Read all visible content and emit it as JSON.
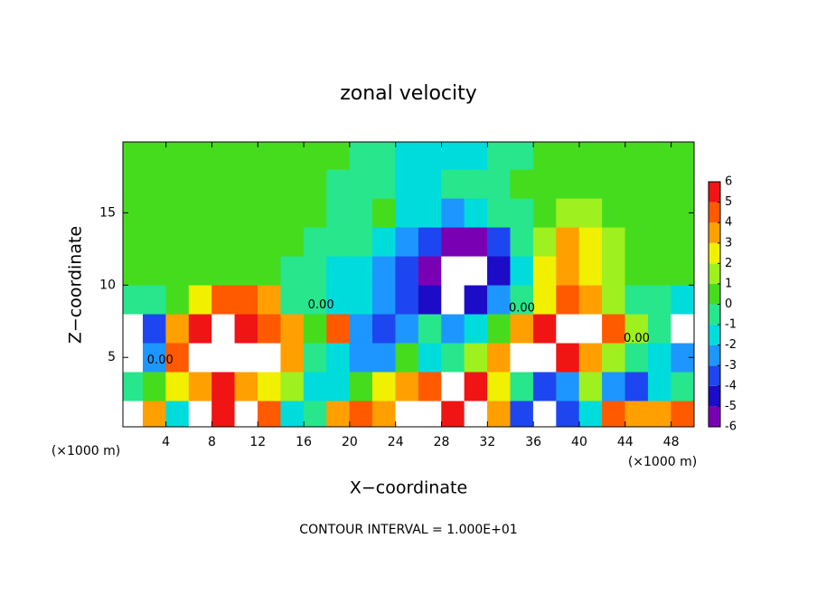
{
  "chart_data": {
    "type": "heatmap",
    "title": "zonal velocity",
    "xlabel": "X−coordinate",
    "ylabel": "Z−coordinate",
    "x_unit_label": "(×1000 m)",
    "x_unit_label_right": "(×1000 m)",
    "footer": "CONTOUR INTERVAL = 1.000E+01",
    "xlim": [
      0.25,
      50
    ],
    "ylim": [
      0.2,
      19.9
    ],
    "xticks": [
      4,
      8,
      12,
      16,
      20,
      24,
      28,
      32,
      36,
      40,
      44,
      48
    ],
    "yticks": [
      5,
      10,
      15
    ],
    "x": [
      1,
      3,
      5,
      7,
      9,
      11,
      13,
      15,
      17,
      19,
      21,
      23,
      25,
      27,
      29,
      31,
      33,
      35,
      37,
      39,
      41,
      43,
      45,
      47,
      49
    ],
    "y": [
      1,
      3,
      5,
      7,
      9,
      11,
      13,
      15,
      17,
      19
    ],
    "z": [
      [
        8,
        3,
        -2,
        8,
        5,
        8,
        4,
        -2,
        -1,
        3,
        4,
        3,
        8,
        8,
        5,
        6,
        3,
        -4,
        8,
        -4,
        -2,
        4,
        3,
        3,
        4
      ],
      [
        -1,
        0.5,
        2,
        3,
        5,
        3,
        2,
        1,
        -2,
        -2,
        0.5,
        2,
        3,
        4,
        8,
        5,
        2,
        -1,
        -4,
        -3,
        1,
        -3,
        -4,
        -2,
        -1
      ],
      [
        8,
        -3,
        4,
        6,
        8,
        8,
        6,
        3,
        -0.5,
        -2,
        -3,
        -3,
        0.5,
        -2,
        -1,
        1,
        3,
        6,
        8,
        5,
        3,
        1,
        -1,
        -2,
        -3
      ],
      [
        8,
        -4,
        3,
        5,
        8,
        5,
        4,
        3,
        0.5,
        4,
        -3,
        -4,
        -3,
        -1,
        -3,
        -2,
        0,
        3,
        5,
        6,
        8,
        4,
        1,
        -1,
        8
      ],
      [
        -1,
        -1,
        0.5,
        2,
        4,
        4,
        3,
        -0.5,
        -1,
        -1.5,
        -2,
        -3,
        -4,
        -5,
        8,
        -5,
        -3,
        -1,
        2,
        4,
        3,
        1,
        -0.5,
        -1,
        -2
      ],
      [
        0.5,
        0.5,
        0.5,
        0.5,
        0.5,
        0,
        0,
        -0.5,
        -1,
        -1.5,
        -2,
        -3,
        -4,
        -6,
        8,
        8,
        -5,
        -2,
        2,
        3.5,
        2.5,
        1,
        0.5,
        0.5,
        0
      ],
      [
        0.5,
        0.5,
        0.5,
        0.5,
        0.5,
        0.5,
        0,
        0,
        -0.5,
        -1,
        -1,
        -2,
        -3,
        -4,
        -6,
        -6,
        -4,
        -1,
        1.5,
        3,
        2,
        1,
        0.5,
        0.5,
        0.5
      ],
      [
        0.5,
        0.5,
        0.5,
        0.5,
        0.5,
        0.5,
        0.5,
        0,
        0,
        -1,
        -1,
        0.5,
        -1.5,
        -2,
        -2.5,
        -2,
        -1,
        -0.5,
        0.5,
        1.5,
        1,
        0.5,
        0.5,
        0.5,
        0.5
      ],
      [
        0.5,
        0.5,
        0.5,
        0.5,
        0.5,
        0.5,
        0.5,
        0.5,
        0,
        -0.5,
        -1,
        -1,
        -1.5,
        -1.5,
        -1,
        -0.5,
        -0.5,
        0,
        0,
        0.5,
        0.5,
        0.5,
        0.5,
        0.5,
        0.5
      ],
      [
        0.5,
        0.5,
        0.5,
        0.5,
        0.5,
        0.5,
        0.5,
        0.5,
        0.5,
        0,
        -0.5,
        -1,
        -1.5,
        -1.5,
        -1.5,
        -1.5,
        -1,
        -0.5,
        0,
        0.5,
        0.5,
        0.5,
        0.5,
        0.5,
        0.5
      ]
    ],
    "colorbar_ticks": [
      -6,
      -5,
      -4,
      -3,
      -2,
      -1,
      0,
      1,
      2,
      3,
      4,
      5,
      6
    ],
    "colors": [
      "#7a00b4",
      "#1c0cc8",
      "#1e46f0",
      "#1e96ff",
      "#00dcdc",
      "#28e68c",
      "#46dc1e",
      "#9ef01e",
      "#f0f000",
      "#ffa000",
      "#ff5a00",
      "#f01414"
    ],
    "over_color": "#ffffff",
    "contour_labels": [
      {
        "text": "0.00",
        "x": 17.5,
        "y": 8.6
      },
      {
        "text": "0.00",
        "x": 3.5,
        "y": 4.8
      },
      {
        "text": "0.00",
        "x": 35,
        "y": 8.4
      },
      {
        "text": "0.00",
        "x": 45,
        "y": 6.3
      }
    ]
  }
}
